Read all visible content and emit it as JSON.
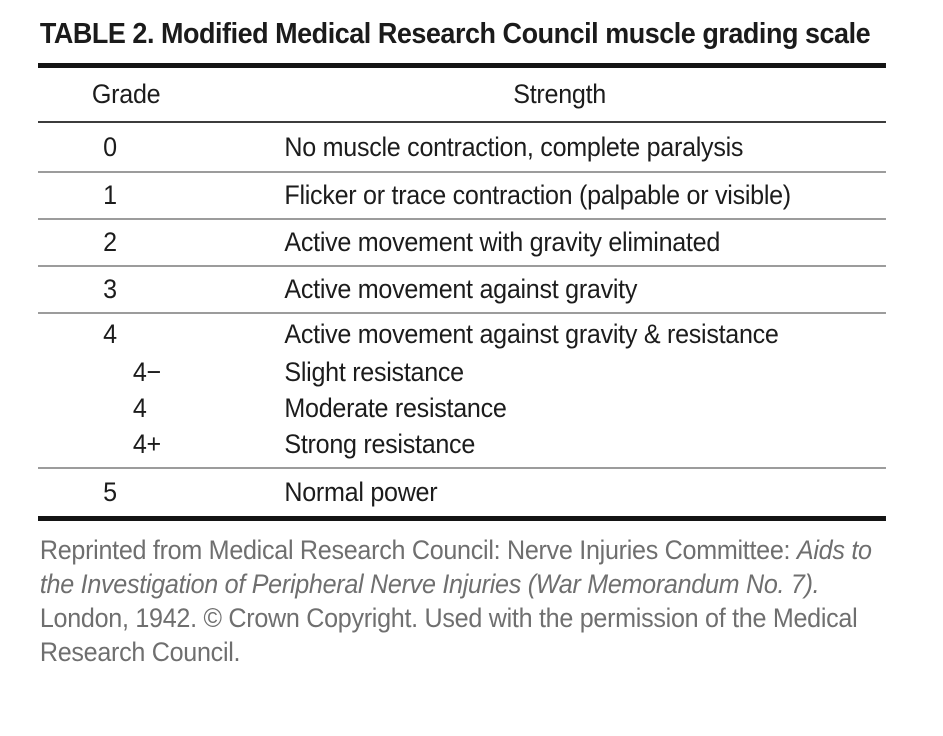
{
  "figure": {
    "title": "TABLE 2. Modified Medical Research Council muscle grading scale"
  },
  "table": {
    "headers": {
      "grade": "Grade",
      "strength": "Strength"
    },
    "rows": [
      {
        "grade": "0",
        "strength": "No muscle contraction, complete paralysis"
      },
      {
        "grade": "1",
        "strength": "Flicker or trace contraction (palpable or visible)"
      },
      {
        "grade": "2",
        "strength": "Active movement with gravity eliminated"
      },
      {
        "grade": "3",
        "strength": "Active movement against gravity"
      },
      {
        "grade": "4",
        "strength": "Active movement against gravity & resistance",
        "subrows": [
          {
            "grade": "4−",
            "strength": "Slight resistance"
          },
          {
            "grade": "4",
            "strength": "Moderate resistance"
          },
          {
            "grade": "4+",
            "strength": "Strong resistance"
          }
        ]
      },
      {
        "grade": "5",
        "strength": "Normal power"
      }
    ]
  },
  "footnote": {
    "prefix": "Reprinted from Medical Research Council: Nerve Injuries Committee: ",
    "italic_title": "Aids to the Investigation of Peripheral Nerve Injuries (War Memorandum No. 7).",
    "suffix": " London, 1942. © Crown Copyright. Used with the permission of the Medical Research Council."
  }
}
